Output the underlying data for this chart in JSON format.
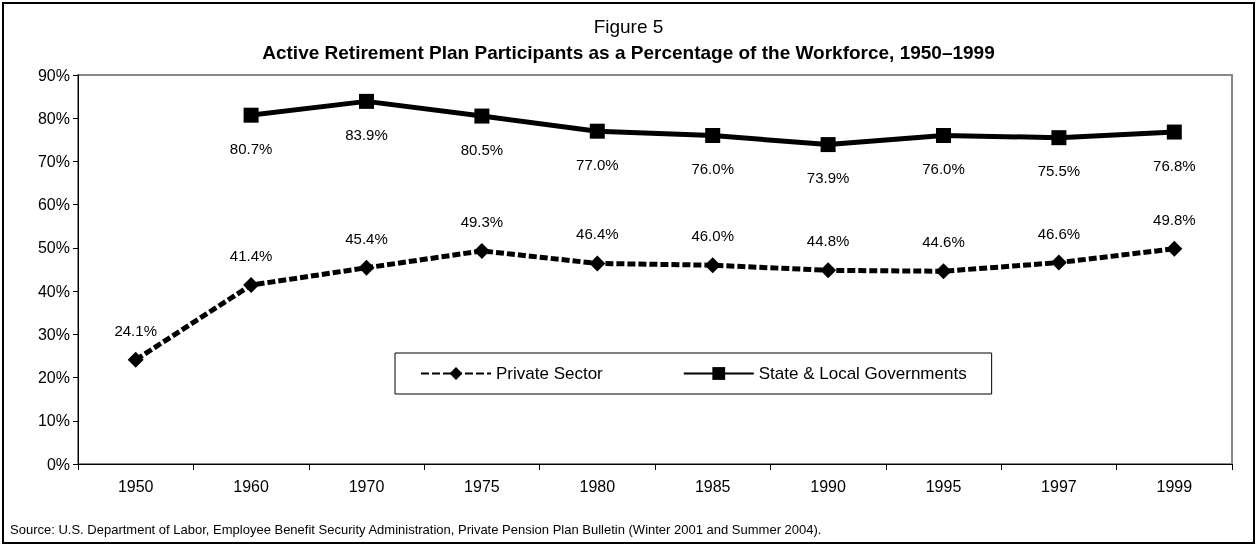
{
  "chart_data": {
    "type": "line",
    "title": "Figure 5",
    "subtitle": "Active Retirement Plan Participants as a Percentage of the Workforce, 1950–1999",
    "categories": [
      "1950",
      "1960",
      "1970",
      "1975",
      "1980",
      "1985",
      "1990",
      "1995",
      "1997",
      "1999"
    ],
    "series": [
      {
        "name": "Private Sector",
        "color": "#000000",
        "marker": "diamond",
        "line_style": "dashed",
        "values": [
          24.1,
          41.4,
          45.4,
          49.3,
          46.4,
          46.0,
          44.8,
          44.6,
          46.6,
          49.8
        ],
        "value_labels": [
          "24.1%",
          "41.4%",
          "45.4%",
          "49.3%",
          "46.4%",
          "46.0%",
          "44.8%",
          "44.6%",
          "46.6%",
          "49.8%"
        ]
      },
      {
        "name": "State & Local Governments",
        "color": "#000000",
        "marker": "square",
        "line_style": "solid",
        "values": [
          null,
          80.7,
          83.9,
          80.5,
          77.0,
          76.0,
          73.9,
          76.0,
          75.5,
          76.8
        ],
        "value_labels": [
          null,
          "80.7%",
          "83.9%",
          "80.5%",
          "77.0%",
          "76.0%",
          "73.9%",
          "76.0%",
          "75.5%",
          "76.8%"
        ]
      }
    ],
    "ylim": [
      0,
      90
    ],
    "yticks": [
      {
        "value": 0,
        "label": "0%"
      },
      {
        "value": 10,
        "label": "10%"
      },
      {
        "value": 20,
        "label": "20%"
      },
      {
        "value": 30,
        "label": "30%"
      },
      {
        "value": 40,
        "label": "40%"
      },
      {
        "value": 50,
        "label": "50%"
      },
      {
        "value": 60,
        "label": "60%"
      },
      {
        "value": 70,
        "label": "70%"
      },
      {
        "value": 80,
        "label": "80%"
      },
      {
        "value": 90,
        "label": "90%"
      }
    ],
    "grid": false,
    "legend": "bottom",
    "annotations": [
      "Source: U.S. Department of Labor, Employee Benefit Security Administration, Private Pension Plan Bulletin (Winter 2001 and Summer 2004)."
    ]
  }
}
